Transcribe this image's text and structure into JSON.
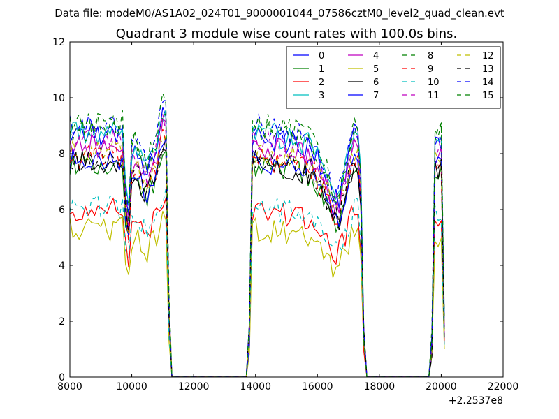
{
  "figure": {
    "supertitle": "Data file: modeM0/AS1A02_024T01_9000001044_07586cztM0_level2_quad_clean.evt"
  },
  "chart_data": {
    "type": "line",
    "title": "Quadrant 3 module wise count rates with 100.0s bins.",
    "xlabel": "",
    "ylabel": "",
    "x_offset_label": "+2.2537e8",
    "xlim": [
      8000,
      22000
    ],
    "ylim": [
      0,
      12
    ],
    "xticks": [
      8000,
      10000,
      12000,
      14000,
      16000,
      18000,
      20000,
      22000
    ],
    "yticks": [
      0,
      2,
      4,
      6,
      8,
      10,
      12
    ],
    "xtick_labels": [
      "8000",
      "10000",
      "12000",
      "14000",
      "16000",
      "18000",
      "20000",
      "22000"
    ],
    "ytick_labels": [
      "0",
      "2",
      "4",
      "6",
      "8",
      "10",
      "12"
    ],
    "grid": false,
    "legend_position": "top-right",
    "legend_columns": 4,
    "series": [
      {
        "name": "0",
        "color": "#0000ff",
        "dash": "solid",
        "base": 8.7
      },
      {
        "name": "1",
        "color": "#008000",
        "dash": "solid",
        "base": 7.6
      },
      {
        "name": "2",
        "color": "#ff0000",
        "dash": "solid",
        "base": 6.0
      },
      {
        "name": "3",
        "color": "#00bfbf",
        "dash": "solid",
        "base": 8.8
      },
      {
        "name": "4",
        "color": "#bf00bf",
        "dash": "solid",
        "base": 8.3
      },
      {
        "name": "5",
        "color": "#bfbf00",
        "dash": "solid",
        "base": 5.3
      },
      {
        "name": "6",
        "color": "#000000",
        "dash": "solid",
        "base": 7.7
      },
      {
        "name": "7",
        "color": "#0000ff",
        "dash": "solid",
        "base": 7.8
      },
      {
        "name": "8",
        "color": "#008000",
        "dash": "dashed",
        "base": 8.9
      },
      {
        "name": "9",
        "color": "#ff0000",
        "dash": "dashed",
        "base": 7.9
      },
      {
        "name": "10",
        "color": "#00bfbf",
        "dash": "dashed",
        "base": 6.1
      },
      {
        "name": "11",
        "color": "#bf00bf",
        "dash": "dashed",
        "base": 8.5
      },
      {
        "name": "12",
        "color": "#bfbf00",
        "dash": "dashed",
        "base": 8.1
      },
      {
        "name": "13",
        "color": "#000000",
        "dash": "dashed",
        "base": 7.8
      },
      {
        "name": "14",
        "color": "#0000ff",
        "dash": "dashed",
        "base": 9.0
      },
      {
        "name": "15",
        "color": "#008000",
        "dash": "dashed",
        "base": 9.1
      }
    ],
    "profile": [
      [
        8000,
        1.0
      ],
      [
        9700,
        1.0
      ],
      [
        9800,
        0.75
      ],
      [
        9870,
        0.5
      ],
      [
        9950,
        0.92
      ],
      [
        10100,
        0.95
      ],
      [
        10300,
        0.88
      ],
      [
        10500,
        0.85
      ],
      [
        10800,
        0.95
      ],
      [
        11000,
        1.08
      ],
      [
        11100,
        1.06
      ],
      [
        11200,
        0.3
      ],
      [
        11260,
        0.0
      ],
      [
        13780,
        0.0
      ],
      [
        13880,
        1.0
      ],
      [
        15800,
        0.95
      ],
      [
        16000,
        0.9
      ],
      [
        16300,
        0.82
      ],
      [
        16500,
        0.72
      ],
      [
        16700,
        0.74
      ],
      [
        16900,
        0.84
      ],
      [
        17200,
        1.0
      ],
      [
        17380,
        0.95
      ],
      [
        17480,
        0.25
      ],
      [
        17550,
        0.0
      ],
      [
        19600,
        0.0
      ],
      [
        19700,
        0.15
      ],
      [
        19800,
        0.95
      ],
      [
        20000,
        0.98
      ],
      [
        20100,
        0.2
      ]
    ]
  }
}
